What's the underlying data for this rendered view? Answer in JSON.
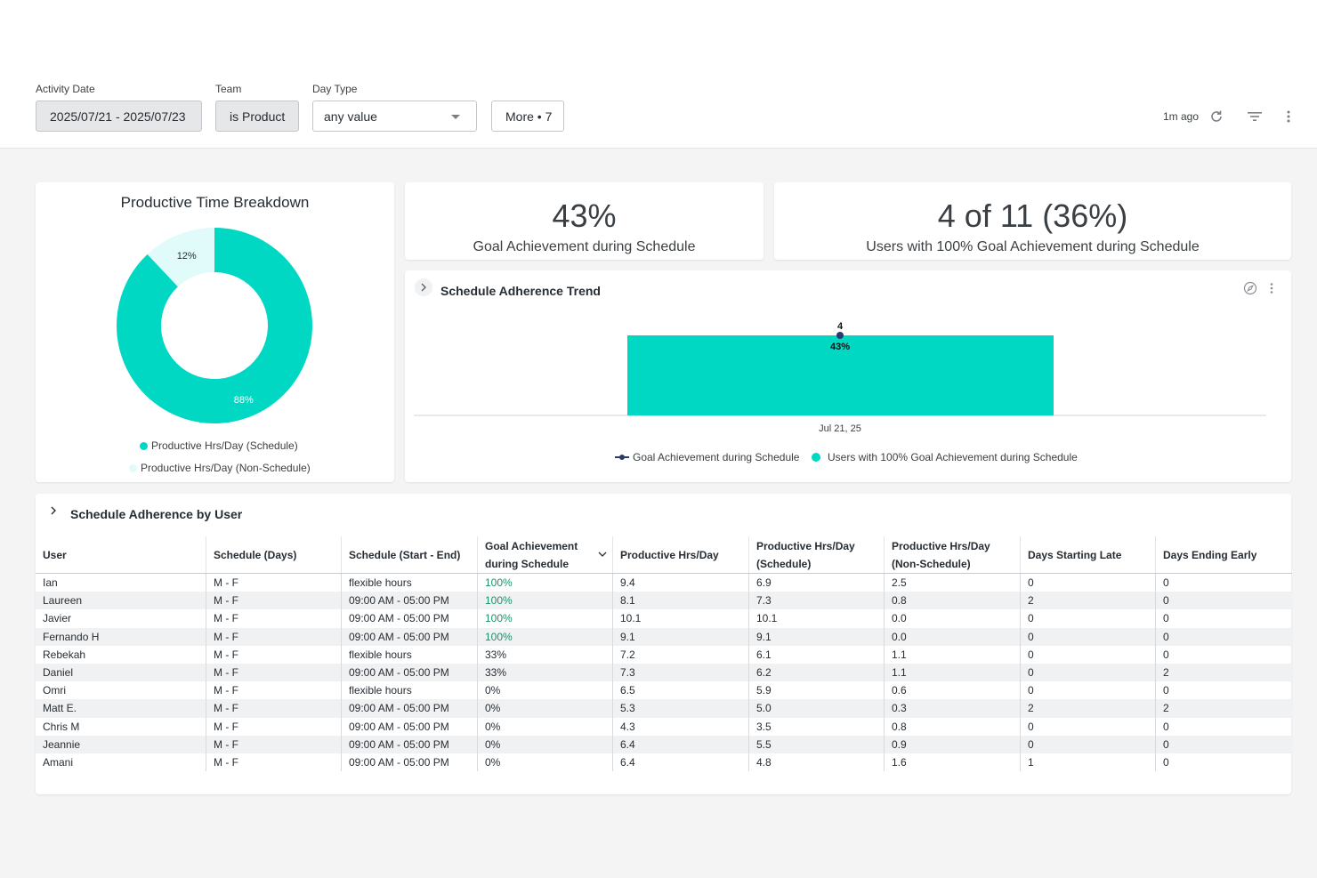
{
  "filters": {
    "activity_date": {
      "label": "Activity Date",
      "value": "2025/07/21 - 2025/07/23"
    },
    "team": {
      "label": "Team",
      "value": "is Product"
    },
    "day_type": {
      "label": "Day Type",
      "value": "any value"
    },
    "more": {
      "value": "More • 7"
    }
  },
  "toolbar": {
    "updated": "1m ago",
    "icons": [
      "refresh-icon",
      "filter-icon",
      "more-vert-icon"
    ]
  },
  "colors": {
    "teal": "#00d8c4",
    "light_teal": "#e0fbfa",
    "navy": "#2b3a6b",
    "good_green": "#1f8f68"
  },
  "donut_card": {
    "title": "Productive Time Breakdown",
    "legend": [
      "Productive Hrs/Day (Schedule)",
      "Productive Hrs/Day (Non-Schedule)"
    ]
  },
  "kpi1": {
    "value": "43%",
    "label": "Goal Achievement during Schedule"
  },
  "kpi2": {
    "value": "4 of 11 (36%)",
    "label": "Users with 100% Goal Achievement during Schedule"
  },
  "trend_card": {
    "title": "Schedule Adherence Trend",
    "legend": [
      "Goal Achievement during Schedule",
      "Users with 100% Goal Achievement during Schedule"
    ]
  },
  "table_card": {
    "title": "Schedule Adherence by User",
    "columns": [
      "User",
      "Schedule (Days)",
      "Schedule (Start - End)",
      "Goal Achievement during Schedule",
      "Productive Hrs/Day",
      "Productive Hrs/Day (Schedule)",
      "Productive Hrs/Day (Non-Schedule)",
      "Days Starting Late",
      "Days Ending Early"
    ],
    "rows": [
      [
        "Ian",
        "M - F",
        "flexible hours",
        "100%",
        "9.4",
        "6.9",
        "2.5",
        "0",
        "0"
      ],
      [
        "Laureen",
        "M - F",
        "09:00 AM - 05:00 PM",
        "100%",
        "8.1",
        "7.3",
        "0.8",
        "2",
        "0"
      ],
      [
        "Javier",
        "M - F",
        "09:00 AM - 05:00 PM",
        "100%",
        "10.1",
        "10.1",
        "0.0",
        "0",
        "0"
      ],
      [
        "Fernando H",
        "M - F",
        "09:00 AM - 05:00 PM",
        "100%",
        "9.1",
        "9.1",
        "0.0",
        "0",
        "0"
      ],
      [
        "Rebekah",
        "M - F",
        "flexible hours",
        "33%",
        "7.2",
        "6.1",
        "1.1",
        "0",
        "0"
      ],
      [
        "Daniel",
        "M - F",
        "09:00 AM - 05:00 PM",
        "33%",
        "7.3",
        "6.2",
        "1.1",
        "0",
        "2"
      ],
      [
        "Omri",
        "M - F",
        "flexible hours",
        "0%",
        "6.5",
        "5.9",
        "0.6",
        "0",
        "0"
      ],
      [
        "Matt E.",
        "M - F",
        "09:00 AM - 05:00 PM",
        "0%",
        "5.3",
        "5.0",
        "0.3",
        "2",
        "2"
      ],
      [
        "Chris M",
        "M - F",
        "09:00 AM - 05:00 PM",
        "0%",
        "4.3",
        "3.5",
        "0.8",
        "0",
        "0"
      ],
      [
        "Jeannie",
        "M - F",
        "09:00 AM - 05:00 PM",
        "0%",
        "6.4",
        "5.5",
        "0.9",
        "0",
        "0"
      ],
      [
        "Amani",
        "M - F",
        "09:00 AM - 05:00 PM",
        "0%",
        "6.4",
        "4.8",
        "1.6",
        "1",
        "0"
      ]
    ]
  },
  "chart_data": [
    {
      "type": "pie",
      "title": "Productive Time Breakdown",
      "labels": [
        "Productive Hrs/Day (Schedule)",
        "Productive Hrs/Day (Non-Schedule)"
      ],
      "values": [
        88,
        12
      ],
      "data_labels": [
        "88%",
        "12%"
      ],
      "donut": true,
      "legend": "bottom"
    },
    {
      "type": "bar",
      "title": "Schedule Adherence Trend",
      "categories": [
        "Jul 21, 25"
      ],
      "series": [
        {
          "name": "Users with 100% Goal Achievement during Schedule",
          "type": "bar",
          "values": [
            4
          ],
          "data_labels": [
            "4"
          ]
        },
        {
          "name": "Goal Achievement during Schedule",
          "type": "line",
          "values": [
            43
          ],
          "data_labels": [
            "43%"
          ]
        }
      ],
      "legend": "bottom"
    }
  ]
}
